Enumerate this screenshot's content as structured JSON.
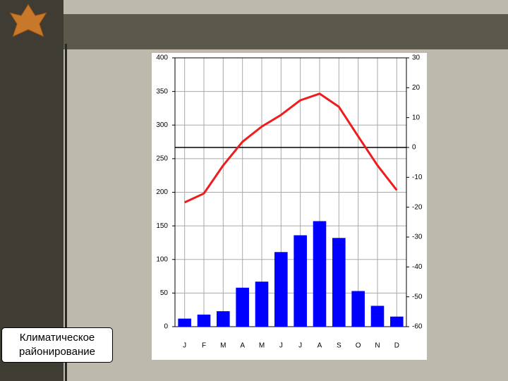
{
  "chart_data": {
    "type": "bar-line",
    "categories": [
      "J",
      "F",
      "M",
      "A",
      "M",
      "J",
      "J",
      "A",
      "S",
      "O",
      "N",
      "D"
    ],
    "series": [
      {
        "type": "bar",
        "color": "#0000ff",
        "values": [
          12,
          18,
          23,
          58,
          67,
          111,
          136,
          157,
          132,
          53,
          31,
          15
        ]
      },
      {
        "type": "line",
        "axis": "y2",
        "color": "#ee1c1c",
        "values": [
          -18.4,
          -15.4,
          -6,
          1.9,
          7,
          10.9,
          15.8,
          18,
          13.6,
          3.7,
          -6,
          -14.3
        ]
      }
    ],
    "ylim": [
      0,
      400
    ],
    "yticks": [
      0,
      50,
      100,
      150,
      200,
      250,
      300,
      350,
      400
    ],
    "y2lim": [
      -60,
      30
    ],
    "y2ticks": [
      -60,
      -50,
      -40,
      -30,
      -20,
      -10,
      0,
      10,
      20,
      30
    ],
    "grid": true
  },
  "slide": {
    "label": "Климатическое районирование"
  }
}
